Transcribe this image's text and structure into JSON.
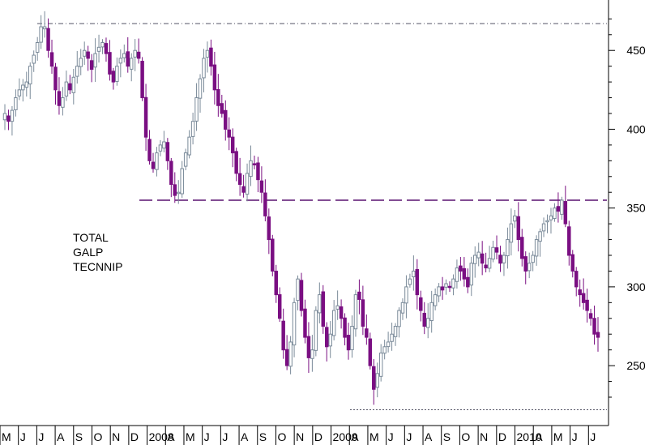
{
  "chart_data": {
    "type": "candlestick",
    "title": "",
    "xlabel": "",
    "ylabel": "",
    "ylim": [
      212,
      482
    ],
    "y_ticks": [
      250,
      300,
      350,
      400,
      450
    ],
    "x_ticks": [
      "M",
      "J",
      "J",
      "A",
      "S",
      "O",
      "N",
      "D",
      "2008",
      "A",
      "M",
      "J",
      "J",
      "A",
      "S",
      "O",
      "N",
      "D",
      "2009",
      "A",
      "M",
      "J",
      "J",
      "A",
      "S",
      "O",
      "N",
      "D",
      "2010",
      "A",
      "M",
      "J",
      "J"
    ],
    "annotations": [
      "TOTAL",
      "GALP",
      "TECNNIP"
    ],
    "reference_lines": [
      {
        "style": "dash-dot",
        "value": 467
      },
      {
        "style": "long-dash",
        "value": 355
      },
      {
        "style": "dotted",
        "value": 222
      }
    ],
    "colors": {
      "up": "#7a8a99",
      "down": "#7a0f82",
      "dash_dot": "#555566",
      "long_dash": "#5a1270",
      "dotted": "#555566"
    },
    "closes": [
      410,
      405,
      412,
      420,
      425,
      428,
      430,
      440,
      447,
      455,
      465,
      465,
      450,
      440,
      425,
      415,
      420,
      430,
      425,
      433,
      440,
      445,
      450,
      445,
      438,
      448,
      452,
      455,
      448,
      435,
      430,
      440,
      445,
      448,
      440,
      445,
      450,
      445,
      420,
      395,
      380,
      375,
      385,
      390,
      392,
      380,
      365,
      358,
      360,
      375,
      385,
      395,
      405,
      420,
      432,
      445,
      450,
      440,
      425,
      415,
      410,
      400,
      395,
      385,
      372,
      365,
      360,
      372,
      380,
      378,
      368,
      360,
      345,
      330,
      310,
      295,
      280,
      260,
      250,
      265,
      290,
      305,
      285,
      268,
      255,
      260,
      285,
      295,
      275,
      262,
      270,
      285,
      288,
      280,
      268,
      260,
      275,
      295,
      292,
      275,
      268,
      250,
      235,
      245,
      258,
      262,
      265,
      270,
      275,
      285,
      290,
      300,
      305,
      310,
      295,
      285,
      275,
      280,
      290,
      295,
      300,
      298,
      302,
      300,
      305,
      312,
      310,
      305,
      300,
      315,
      320,
      322,
      315,
      312,
      318,
      325,
      322,
      315,
      320,
      330,
      340,
      345,
      330,
      318,
      310,
      315,
      320,
      330,
      335,
      340,
      342,
      345,
      350,
      348,
      355,
      340,
      320,
      310,
      300,
      295,
      290,
      285,
      280,
      270,
      268
    ]
  }
}
